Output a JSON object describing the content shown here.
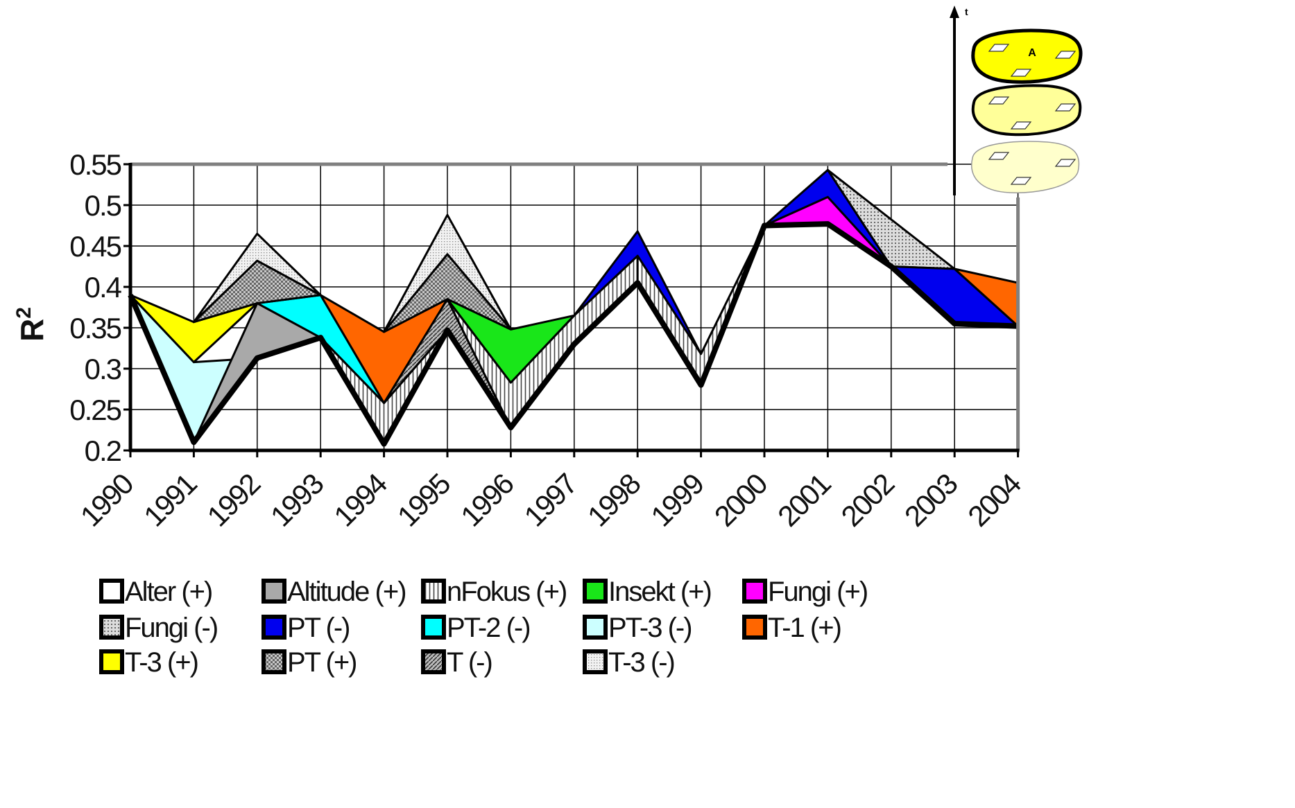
{
  "chart_data": {
    "type": "area",
    "ylabel": "R",
    "ylabel_sup": "2",
    "ylim": [
      0.2,
      0.55
    ],
    "yticks": [
      "0.55",
      "0.5",
      "0.45",
      "0.4",
      "0.35",
      "0.3",
      "0.25",
      "0.2"
    ],
    "categories": [
      "1990",
      "1991",
      "1992",
      "1993",
      "1994",
      "1995",
      "1996",
      "1997",
      "1998",
      "1999",
      "2000",
      "2001",
      "2002",
      "2003",
      "2004"
    ],
    "grid": true,
    "legend_position": "bottom",
    "legend": [
      {
        "label": "Alter (+)",
        "color": "#ffffff",
        "pattern": "solid"
      },
      {
        "label": "Altitude (+)",
        "color": "#a9a9a9",
        "pattern": "solid"
      },
      {
        "label": "nFokus (+)",
        "color": "#ffffff",
        "pattern": "vstripes"
      },
      {
        "label": "Insekt (+)",
        "color": "#19e619",
        "pattern": "solid"
      },
      {
        "label": "Fungi (+)",
        "color": "#ff00ff",
        "pattern": "solid"
      },
      {
        "label": "Fungi (-)",
        "color": "#d0d0d0",
        "pattern": "dots"
      },
      {
        "label": "PT (-)",
        "color": "#0000ee",
        "pattern": "solid"
      },
      {
        "label": "PT-2 (-)",
        "color": "#00ffff",
        "pattern": "solid"
      },
      {
        "label": "PT-3 (-)",
        "color": "#ccffff",
        "pattern": "solid"
      },
      {
        "label": "T-1 (+)",
        "color": "#ff6600",
        "pattern": "solid"
      },
      {
        "label": "T-3 (+)",
        "color": "#ffff00",
        "pattern": "solid"
      },
      {
        "label": "PT (+)",
        "color": "#999999",
        "pattern": "checker"
      },
      {
        "label": "T (-)",
        "color": "#888888",
        "pattern": "diagonal"
      },
      {
        "label": "T-3 (-)",
        "color": "#e6e6e6",
        "pattern": "finedots"
      }
    ],
    "base": [
      0.39,
      0.21,
      0.313,
      0.338,
      0.208,
      0.347,
      0.228,
      0.33,
      0.405,
      0.28,
      0.475,
      0.477,
      0.425,
      0.355,
      0.352
    ],
    "layers": [
      {
        "name": "PT-3 (-)",
        "color": "#ccffff",
        "pattern": "solid",
        "pts": [
          [
            0,
            0.39
          ],
          [
            1,
            0.21
          ],
          [
            2,
            0.313
          ],
          [
            1,
            0.308
          ],
          [
            0,
            0.39
          ]
        ]
      },
      {
        "name": "Altitude (+)",
        "color": "#a9a9a9",
        "pattern": "solid",
        "pts": [
          [
            1,
            0.21
          ],
          [
            2,
            0.313
          ],
          [
            3,
            0.338
          ],
          [
            2,
            0.38
          ],
          [
            1,
            0.21
          ]
        ]
      },
      {
        "name": "T-3 (+)",
        "color": "#ffff00",
        "pattern": "solid",
        "pts": [
          [
            0,
            0.39
          ],
          [
            1,
            0.308
          ],
          [
            2,
            0.38
          ],
          [
            1,
            0.357
          ],
          [
            0,
            0.39
          ]
        ]
      },
      {
        "name": "PT-2 (-)",
        "color": "#00ffff",
        "pattern": "solid",
        "pts": [
          [
            2,
            0.38
          ],
          [
            3,
            0.39
          ],
          [
            4,
            0.258
          ],
          [
            3,
            0.338
          ],
          [
            2,
            0.38
          ]
        ]
      },
      {
        "name": "PT (+)",
        "color": "#999999",
        "pattern": "checker",
        "pts": [
          [
            1,
            0.357
          ],
          [
            2,
            0.432
          ],
          [
            3,
            0.39
          ],
          [
            2,
            0.38
          ],
          [
            1,
            0.357
          ]
        ]
      },
      {
        "name": "T-3 (-)",
        "color": "#e6e6e6",
        "pattern": "finedots",
        "pts": [
          [
            1,
            0.357
          ],
          [
            2,
            0.465
          ],
          [
            3,
            0.39
          ],
          [
            2,
            0.432
          ],
          [
            1,
            0.357
          ]
        ]
      },
      {
        "name": "nFokus (+)",
        "color": "#ffffff",
        "pattern": "vstripes",
        "pts": [
          [
            3,
            0.338
          ],
          [
            4,
            0.208
          ],
          [
            5,
            0.347
          ],
          [
            4,
            0.258
          ],
          [
            3,
            0.338
          ]
        ]
      },
      {
        "name": "T-1 (+)",
        "color": "#ff6600",
        "pattern": "solid",
        "pts": [
          [
            3,
            0.39
          ],
          [
            4,
            0.258
          ],
          [
            5,
            0.385
          ],
          [
            4,
            0.345
          ],
          [
            3,
            0.39
          ]
        ]
      },
      {
        "name": "T (-)",
        "color": "#888888",
        "pattern": "diagonal",
        "pts": [
          [
            4,
            0.258
          ],
          [
            5,
            0.347
          ],
          [
            6,
            0.228
          ],
          [
            5,
            0.385
          ],
          [
            4,
            0.258
          ]
        ]
      },
      {
        "name": "PT (+)",
        "color": "#999999",
        "pattern": "checker",
        "pts": [
          [
            4,
            0.345
          ],
          [
            5,
            0.44
          ],
          [
            6,
            0.348
          ],
          [
            5,
            0.385
          ],
          [
            4,
            0.345
          ]
        ]
      },
      {
        "name": "T-3 (-)",
        "color": "#e6e6e6",
        "pattern": "finedots",
        "pts": [
          [
            4,
            0.345
          ],
          [
            5,
            0.488
          ],
          [
            6,
            0.348
          ],
          [
            5,
            0.44
          ],
          [
            4,
            0.345
          ]
        ]
      },
      {
        "name": "nFokus (+)",
        "color": "#ffffff",
        "pattern": "vstripes",
        "pts": [
          [
            5,
            0.385
          ],
          [
            6,
            0.228
          ],
          [
            7,
            0.33
          ],
          [
            8,
            0.405
          ],
          [
            8,
            0.438
          ],
          [
            7,
            0.365
          ],
          [
            6,
            0.283
          ],
          [
            5,
            0.385
          ]
        ]
      },
      {
        "name": "Insekt (+)",
        "color": "#19e619",
        "pattern": "solid",
        "pts": [
          [
            5,
            0.385
          ],
          [
            6,
            0.283
          ],
          [
            7,
            0.365
          ],
          [
            6,
            0.348
          ],
          [
            5,
            0.385
          ]
        ]
      },
      {
        "name": "PT (-)",
        "color": "#0000ee",
        "pattern": "solid",
        "pts": [
          [
            7,
            0.365
          ],
          [
            8,
            0.468
          ],
          [
            9,
            0.318
          ],
          [
            8,
            0.438
          ],
          [
            7,
            0.365
          ]
        ]
      },
      {
        "name": "nFokus (+)",
        "color": "#ffffff",
        "pattern": "vstripes",
        "pts": [
          [
            8,
            0.405
          ],
          [
            9,
            0.28
          ],
          [
            10,
            0.475
          ],
          [
            9,
            0.318
          ],
          [
            8,
            0.438
          ],
          [
            8,
            0.405
          ]
        ]
      },
      {
        "name": "Fungi (+)",
        "color": "#ff00ff",
        "pattern": "solid",
        "pts": [
          [
            10,
            0.475
          ],
          [
            11,
            0.477
          ],
          [
            12,
            0.425
          ],
          [
            11,
            0.51
          ],
          [
            10,
            0.475
          ]
        ]
      },
      {
        "name": "PT (-)",
        "color": "#0000ee",
        "pattern": "solid",
        "pts": [
          [
            10,
            0.475
          ],
          [
            11,
            0.51
          ],
          [
            12,
            0.425
          ],
          [
            11,
            0.543
          ],
          [
            10,
            0.475
          ]
        ]
      },
      {
        "name": "Fungi (-)",
        "color": "#d0d0d0",
        "pattern": "dots",
        "pts": [
          [
            11,
            0.543
          ],
          [
            12,
            0.425
          ],
          [
            13,
            0.422
          ],
          [
            11,
            0.543
          ]
        ]
      },
      {
        "name": "PT (-)",
        "color": "#0000ee",
        "pattern": "solid",
        "pts": [
          [
            12,
            0.425
          ],
          [
            13,
            0.355
          ],
          [
            14,
            0.352
          ],
          [
            13,
            0.422
          ],
          [
            12,
            0.425
          ]
        ]
      },
      {
        "name": "T-1 (+)",
        "color": "#ff6600",
        "pattern": "solid",
        "pts": [
          [
            13,
            0.422
          ],
          [
            14,
            0.352
          ],
          [
            14,
            0.405
          ],
          [
            13,
            0.422
          ]
        ]
      }
    ]
  },
  "inset": {
    "axis_label": "t",
    "ellipses": [
      {
        "label": "A",
        "color": "#ffff00",
        "outline": "#000000"
      },
      {
        "label": "",
        "color": "#ffff99",
        "outline": "#000000"
      },
      {
        "label": "",
        "color": "#ffffcc",
        "outline": "#999999"
      }
    ]
  }
}
